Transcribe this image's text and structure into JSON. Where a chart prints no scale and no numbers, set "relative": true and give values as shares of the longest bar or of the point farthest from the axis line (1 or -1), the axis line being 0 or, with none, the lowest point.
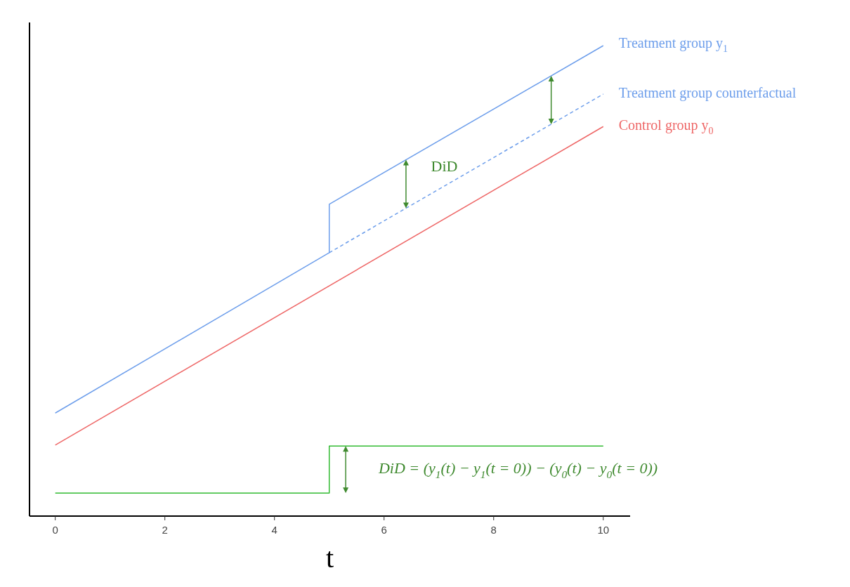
{
  "chart_data": {
    "type": "line",
    "relative": true,
    "xlabel": "t",
    "xlim": [
      -0.47,
      10.49
    ],
    "xticks": [
      0,
      2,
      4,
      6,
      8,
      10
    ],
    "series": [
      {
        "name": "Treatment group y$_{1}$",
        "color": "#6d9eeb",
        "x": [
          0,
          5,
          5,
          10
        ],
        "values": [
          0.219,
          0.56,
          0.663,
          1.0
        ]
      },
      {
        "name": "Treatment group counterfactual",
        "color": "#6d9eeb",
        "line_style": "dashed",
        "x": [
          5,
          10
        ],
        "values": [
          0.56,
          0.897
        ]
      },
      {
        "name": "Control group y$_{0}$",
        "color": "#ee6666",
        "x": [
          0,
          10
        ],
        "values": [
          0.151,
          0.828
        ]
      },
      {
        "color": "#33bb33",
        "x": [
          0,
          5,
          5,
          10
        ],
        "values": [
          0.049,
          0.049,
          0.149,
          0.149
        ]
      }
    ],
    "annotations": [
      "DiD",
      "DiD = (y$_{1}$(t) − y$_{1}$(t = 0)) − (y$_{0}$(t) − y$_{0}$(t = 0))"
    ]
  }
}
